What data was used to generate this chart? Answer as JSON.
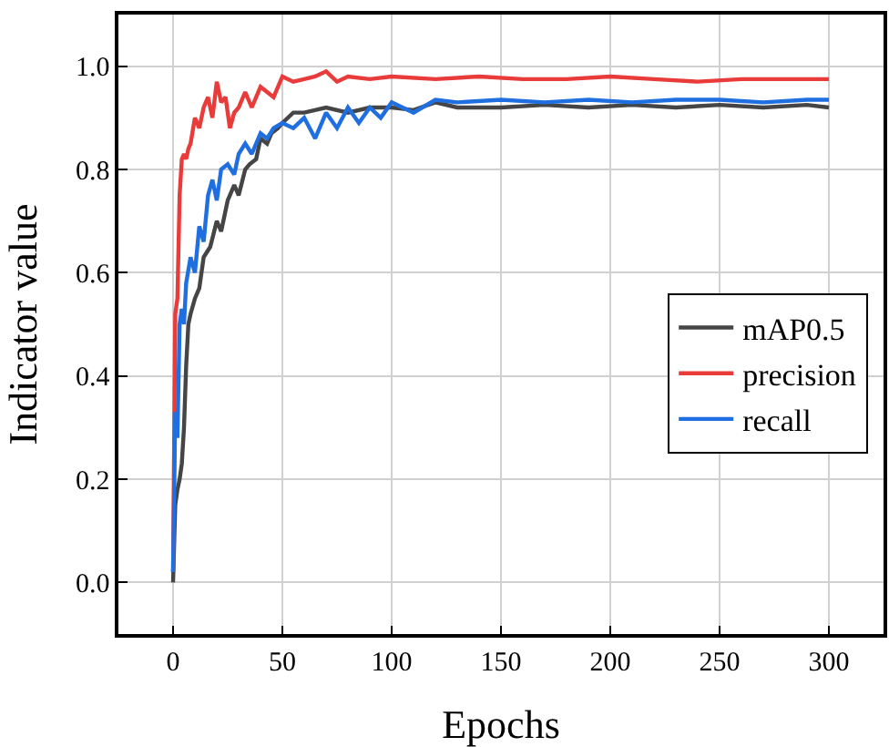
{
  "chart_data": {
    "type": "line",
    "xlabel": "Epochs",
    "ylabel": "Indicator value",
    "xlim": [
      -25,
      325
    ],
    "ylim": [
      -0.1,
      1.1
    ],
    "xticks": [
      0,
      50,
      100,
      150,
      200,
      250,
      300
    ],
    "yticks": [
      {
        "value": 0,
        "label": "0.0"
      },
      {
        "value": 0.2,
        "label": "0.2"
      },
      {
        "value": 0.4,
        "label": "0.4"
      },
      {
        "value": 0.6,
        "label": "0.6"
      },
      {
        "value": 0.8,
        "label": "0.8"
      },
      {
        "value": 1,
        "label": "1.0"
      }
    ],
    "grid": true,
    "legend": "right",
    "line_style": "solid",
    "marker": "none",
    "series": [
      {
        "name": "mAP0.5",
        "color": "#454545",
        "x": [
          0,
          1,
          2,
          3,
          4,
          5,
          6,
          7,
          8,
          10,
          12,
          14,
          17,
          20,
          22,
          25,
          28,
          30,
          33,
          35,
          38,
          40,
          43,
          45,
          48,
          50,
          55,
          60,
          70,
          80,
          90,
          100,
          110,
          120,
          130,
          150,
          170,
          190,
          210,
          230,
          250,
          270,
          290,
          300
        ],
        "values": [
          0.0,
          0.15,
          0.18,
          0.2,
          0.23,
          0.3,
          0.42,
          0.5,
          0.52,
          0.55,
          0.57,
          0.63,
          0.65,
          0.7,
          0.68,
          0.74,
          0.77,
          0.75,
          0.8,
          0.81,
          0.82,
          0.86,
          0.85,
          0.87,
          0.88,
          0.89,
          0.91,
          0.91,
          0.92,
          0.91,
          0.92,
          0.92,
          0.915,
          0.93,
          0.92,
          0.92,
          0.925,
          0.92,
          0.925,
          0.92,
          0.925,
          0.92,
          0.925,
          0.92
        ]
      },
      {
        "name": "precision",
        "color": "#ea3b3b",
        "x": [
          0,
          1,
          2,
          3,
          4,
          5,
          6,
          7,
          8,
          10,
          12,
          14,
          16,
          18,
          20,
          22,
          24,
          26,
          28,
          30,
          33,
          36,
          40,
          43,
          46,
          50,
          55,
          60,
          65,
          70,
          75,
          80,
          90,
          100,
          120,
          140,
          160,
          180,
          200,
          220,
          240,
          260,
          280,
          300
        ],
        "values": [
          0.02,
          0.52,
          0.55,
          0.75,
          0.82,
          0.83,
          0.82,
          0.84,
          0.85,
          0.9,
          0.88,
          0.92,
          0.94,
          0.9,
          0.97,
          0.93,
          0.94,
          0.88,
          0.91,
          0.92,
          0.95,
          0.92,
          0.96,
          0.95,
          0.94,
          0.98,
          0.97,
          0.975,
          0.98,
          0.99,
          0.97,
          0.98,
          0.975,
          0.98,
          0.975,
          0.98,
          0.975,
          0.975,
          0.98,
          0.975,
          0.97,
          0.975,
          0.975,
          0.975
        ]
      },
      {
        "name": "recall",
        "color": "#1f6fe0",
        "x": [
          0,
          1,
          2,
          3,
          4,
          5,
          6,
          8,
          10,
          12,
          14,
          16,
          18,
          20,
          22,
          25,
          28,
          30,
          33,
          36,
          40,
          43,
          46,
          50,
          55,
          60,
          65,
          70,
          75,
          80,
          85,
          90,
          95,
          100,
          110,
          120,
          130,
          150,
          170,
          190,
          210,
          230,
          250,
          270,
          290,
          300
        ],
        "values": [
          0.02,
          0.33,
          0.28,
          0.5,
          0.53,
          0.5,
          0.58,
          0.63,
          0.6,
          0.69,
          0.66,
          0.75,
          0.78,
          0.74,
          0.8,
          0.81,
          0.79,
          0.83,
          0.85,
          0.83,
          0.87,
          0.86,
          0.88,
          0.89,
          0.88,
          0.9,
          0.86,
          0.91,
          0.88,
          0.92,
          0.89,
          0.92,
          0.9,
          0.93,
          0.91,
          0.935,
          0.93,
          0.935,
          0.93,
          0.935,
          0.93,
          0.935,
          0.935,
          0.93,
          0.935,
          0.935
        ]
      }
    ]
  }
}
